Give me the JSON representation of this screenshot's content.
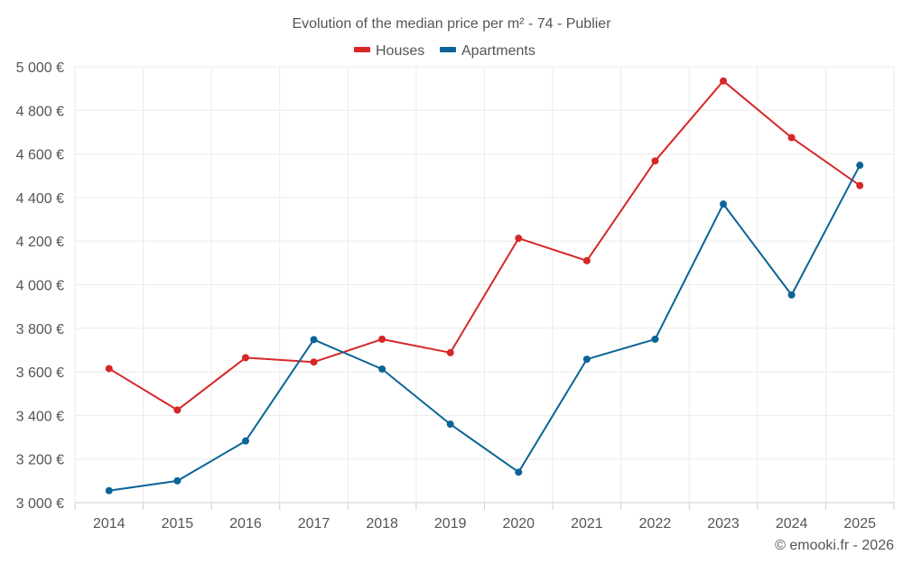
{
  "chart_data": {
    "type": "line",
    "title": "Evolution of the median price per m² - 74 - Publier",
    "categories": [
      "2014",
      "2015",
      "2016",
      "2017",
      "2018",
      "2019",
      "2020",
      "2021",
      "2022",
      "2023",
      "2024",
      "2025"
    ],
    "ylim": [
      3000,
      5000
    ],
    "yticks": [
      3000,
      3200,
      3400,
      3600,
      3800,
      4000,
      4200,
      4400,
      4600,
      4800,
      5000
    ],
    "ytick_labels": [
      "3 000 €",
      "3 200 €",
      "3 400 €",
      "3 600 €",
      "3 800 €",
      "4 000 €",
      "4 200 €",
      "4 400 €",
      "4 600 €",
      "4 800 €",
      "5 000 €"
    ],
    "legend_position": "top-center",
    "grid": true,
    "series": [
      {
        "name": "Houses",
        "color": "#d62728",
        "values": [
          3615,
          3425,
          3665,
          3645,
          3750,
          3688,
          4213,
          4110,
          4568,
          4935,
          4675,
          4455
        ]
      },
      {
        "name": "Apartments",
        "color": "#0a6496",
        "values": [
          3055,
          3100,
          3283,
          3748,
          3613,
          3360,
          3140,
          3658,
          3750,
          4370,
          3953,
          4548
        ]
      }
    ]
  },
  "credit": "© emooki.fr - 2026"
}
